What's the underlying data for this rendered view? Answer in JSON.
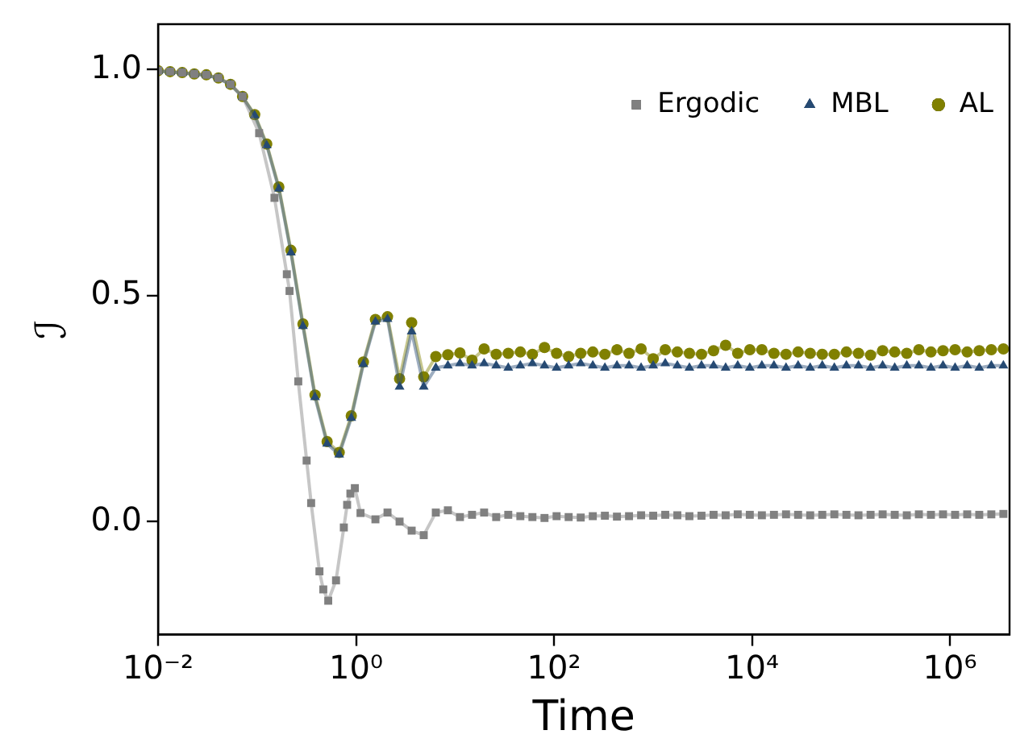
{
  "chart_data": {
    "type": "line",
    "xlabel": "Time",
    "ylabel": "ℐ",
    "log": "x",
    "xlim": [
      0.01,
      4000000
    ],
    "xticks": [
      {
        "value": 0.01,
        "label": "10⁻²"
      },
      {
        "value": 1,
        "label": "10⁰"
      },
      {
        "value": 100,
        "label": "10²"
      },
      {
        "value": 10000,
        "label": "10⁴"
      },
      {
        "value": 1000000,
        "label": "10⁶"
      }
    ],
    "ylim": [
      -0.25,
      1.1
    ],
    "yticks": [
      {
        "value": 0,
        "label": "0.0"
      },
      {
        "value": 0.5,
        "label": "0.5"
      },
      {
        "value": 1,
        "label": "1.0"
      }
    ],
    "grid": false,
    "legend": "top right",
    "line_style": "solid",
    "series": [
      {
        "name": "Ergodic",
        "color": "#808080",
        "marker": "square",
        "x": [
          0.01,
          0.01324,
          0.01754,
          0.02323,
          0.03076,
          0.04074,
          0.05395,
          0.07145,
          0.105,
          0.15,
          0.2,
          0.213,
          0.261,
          0.317,
          0.352,
          0.427,
          0.467,
          0.524,
          0.628,
          0.753,
          0.813,
          0.877,
          0.973,
          1.11,
          1.57,
          2.08,
          2.754,
          3.648,
          4.831,
          6.397,
          8.472,
          11.22,
          14.86,
          19.68,
          26.06,
          34.51,
          45.71,
          60.53,
          80.17,
          106.2,
          140.6,
          186.2,
          246.6,
          326.6,
          432.5,
          572.8,
          758.6,
          1005,
          1330,
          1762,
          2333,
          3090,
          4093,
          5420,
          7178,
          9506,
          12590,
          16670,
          22080,
          29240,
          38730,
          51290,
          67920,
          89950,
          119100,
          157800,
          208900,
          276700,
          366400,
          485300,
          642700,
          851100,
          1127000,
          1493000,
          1977000,
          2618000,
          3467000
        ],
        "values": [
          0.997,
          0.995,
          0.993,
          0.99,
          0.988,
          0.981,
          0.967,
          0.94,
          0.859,
          0.716,
          0.547,
          0.51,
          0.31,
          0.135,
          0.041,
          -0.11,
          -0.15,
          -0.175,
          -0.13,
          -0.013,
          0.037,
          0.062,
          0.074,
          0.019,
          0.005,
          0.02,
          0.0,
          -0.02,
          -0.03,
          0.02,
          0.025,
          0.01,
          0.015,
          0.02,
          0.01,
          0.015,
          0.012,
          0.01,
          0.008,
          0.012,
          0.01,
          0.009,
          0.012,
          0.013,
          0.011,
          0.012,
          0.014,
          0.013,
          0.015,
          0.014,
          0.012,
          0.013,
          0.015,
          0.014,
          0.016,
          0.015,
          0.014,
          0.015,
          0.016,
          0.015,
          0.014,
          0.015,
          0.016,
          0.015,
          0.014,
          0.015,
          0.016,
          0.015,
          0.014,
          0.016,
          0.015,
          0.016,
          0.015,
          0.016,
          0.015,
          0.016,
          0.017
        ]
      },
      {
        "name": "MBL",
        "color": "#264a73",
        "marker": "triangle",
        "values": [
          0.996,
          0.994,
          0.992,
          0.989,
          0.987,
          0.98,
          0.966,
          0.939,
          0.898,
          0.832,
          0.736,
          0.595,
          0.432,
          0.275,
          0.172,
          0.148,
          0.229,
          0.348,
          0.442,
          0.448,
          0.298,
          0.42,
          0.298,
          0.34,
          0.345,
          0.35,
          0.345,
          0.35,
          0.345,
          0.34,
          0.345,
          0.35,
          0.345,
          0.34,
          0.345,
          0.35,
          0.345,
          0.34,
          0.345,
          0.345,
          0.34,
          0.345,
          0.35,
          0.345,
          0.34,
          0.345,
          0.345,
          0.34,
          0.345,
          0.34,
          0.345,
          0.345,
          0.34,
          0.345,
          0.34,
          0.345,
          0.34,
          0.345,
          0.345,
          0.34,
          0.345,
          0.34,
          0.345,
          0.345,
          0.34,
          0.345,
          0.34,
          0.345,
          0.34,
          0.345,
          0.345
        ]
      },
      {
        "name": "AL",
        "color": "#808000",
        "marker": "circle",
        "values": [
          0.997,
          0.995,
          0.993,
          0.99,
          0.988,
          0.981,
          0.967,
          0.94,
          0.9,
          0.835,
          0.74,
          0.6,
          0.437,
          0.28,
          0.177,
          0.153,
          0.234,
          0.353,
          0.447,
          0.453,
          0.316,
          0.44,
          0.32,
          0.365,
          0.369,
          0.373,
          0.357,
          0.382,
          0.37,
          0.372,
          0.375,
          0.37,
          0.385,
          0.372,
          0.365,
          0.372,
          0.375,
          0.37,
          0.38,
          0.372,
          0.382,
          0.36,
          0.38,
          0.375,
          0.372,
          0.37,
          0.378,
          0.39,
          0.372,
          0.38,
          0.38,
          0.372,
          0.37,
          0.375,
          0.372,
          0.37,
          0.37,
          0.375,
          0.372,
          0.368,
          0.378,
          0.375,
          0.372,
          0.38,
          0.375,
          0.378,
          0.38,
          0.375,
          0.378,
          0.38,
          0.382
        ]
      }
    ],
    "x": [
      0.01,
      0.01324,
      0.01754,
      0.02323,
      0.03076,
      0.04074,
      0.05395,
      0.07145,
      0.09462,
      0.1253,
      0.166,
      0.2198,
      0.2911,
      0.3855,
      0.5105,
      0.6761,
      0.8954,
      1.186,
      1.57,
      2.08,
      2.754,
      3.648,
      4.831,
      6.397,
      8.472,
      11.22,
      14.86,
      19.68,
      26.06,
      34.51,
      45.71,
      60.53,
      80.17,
      106.2,
      140.6,
      186.2,
      246.6,
      326.6,
      432.5,
      572.8,
      758.6,
      1005,
      1330,
      1762,
      2333,
      3090,
      4093,
      5420,
      7178,
      9506,
      12590,
      16670,
      22080,
      29240,
      38730,
      51290,
      67920,
      89950,
      119100,
      157800,
      208900,
      276700,
      366400,
      485300,
      642700,
      851100,
      1127000,
      1493000,
      1977000,
      2618000,
      3467000
    ]
  }
}
